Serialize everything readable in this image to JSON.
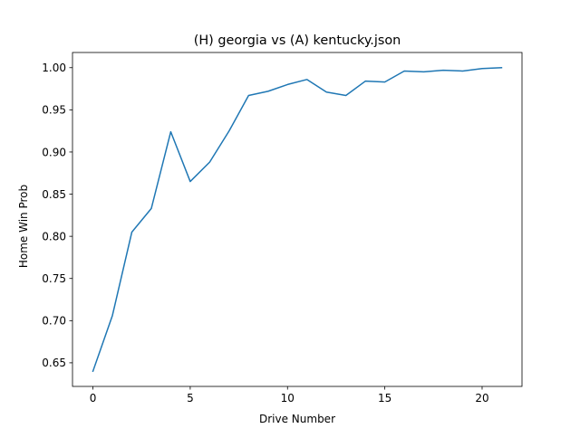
{
  "chart_data": {
    "type": "line",
    "title": "(H) georgia vs (A) kentucky.json",
    "xlabel": "Drive Number",
    "ylabel": "Home Win Prob",
    "xlim": [
      -1.05,
      22.05
    ],
    "ylim": [
      0.622,
      1.018
    ],
    "xticks": [
      0,
      5,
      10,
      15,
      20
    ],
    "xtick_labels": [
      "0",
      "5",
      "10",
      "15",
      "20"
    ],
    "yticks": [
      0.65,
      0.7,
      0.75,
      0.8,
      0.85,
      0.9,
      0.95,
      1.0
    ],
    "ytick_labels": [
      "0.65",
      "0.70",
      "0.75",
      "0.80",
      "0.85",
      "0.90",
      "0.95",
      "1.00"
    ],
    "grid": false,
    "line_color": "#1f77b4",
    "series": [
      {
        "x": [
          0,
          1,
          2,
          3,
          4,
          5,
          6,
          7,
          8,
          9,
          10,
          11,
          12,
          13,
          14,
          15,
          16,
          17,
          18,
          19,
          20,
          21
        ],
        "values": [
          0.64,
          0.706,
          0.805,
          0.833,
          0.924,
          0.865,
          0.888,
          0.925,
          0.967,
          0.972,
          0.98,
          0.986,
          0.971,
          0.967,
          0.984,
          0.983,
          0.996,
          0.995,
          0.997,
          0.996,
          0.999,
          1.0
        ]
      }
    ]
  }
}
